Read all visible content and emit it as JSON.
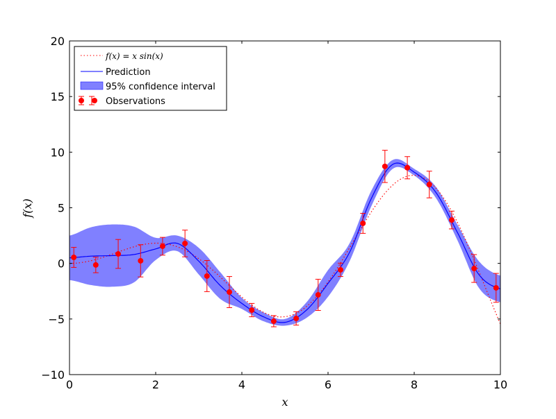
{
  "chart_data": {
    "type": "line",
    "title": "",
    "xlabel": "x",
    "ylabel": "f(x)",
    "xlim": [
      0,
      10
    ],
    "ylim": [
      -10,
      20
    ],
    "xticks": [
      "0",
      "2",
      "4",
      "6",
      "8",
      "10"
    ],
    "yticks": [
      "−10",
      "−5",
      "0",
      "5",
      "10",
      "15",
      "20"
    ],
    "grid": false,
    "legend_placement": "top-left",
    "legend": [
      "f(x) = x sin(x)",
      "Prediction",
      "95% confidence interval",
      "Observations"
    ],
    "colors": {
      "true_function": "#ff0000",
      "prediction": "#0000ff",
      "confidence": "#8080ff",
      "observations": "#ff0000"
    },
    "true_function": {
      "name": "f(x) = x sin(x)",
      "expression": "x*sin(x)",
      "style": "dotted"
    },
    "prediction": {
      "name": "Prediction",
      "x": [
        0,
        0.5,
        1,
        1.5,
        2,
        2.5,
        3,
        3.5,
        4,
        4.5,
        5,
        5.5,
        6,
        6.5,
        7,
        7.5,
        8,
        8.5,
        9,
        9.5,
        10
      ],
      "y": [
        0.5,
        0.65,
        0.7,
        0.8,
        1.3,
        1.8,
        0.2,
        -2.0,
        -3.6,
        -4.8,
        -5.3,
        -4.2,
        -1.8,
        1.0,
        5.8,
        8.9,
        8.2,
        6.4,
        2.8,
        -1.0,
        -2.3
      ],
      "ci_halfwidth": [
        2.0,
        2.6,
        2.8,
        2.5,
        1.0,
        0.7,
        1.2,
        1.2,
        0.5,
        0.4,
        0.3,
        0.7,
        1.2,
        0.8,
        0.7,
        0.4,
        0.3,
        0.5,
        0.7,
        1.2,
        1.2
      ]
    },
    "observations": {
      "name": "Observations",
      "x": [
        0.1,
        0.61,
        1.13,
        1.65,
        2.16,
        2.68,
        3.19,
        3.71,
        4.23,
        4.74,
        5.26,
        5.77,
        6.29,
        6.81,
        7.32,
        7.84,
        8.35,
        8.87,
        9.39,
        9.9
      ],
      "y": [
        0.54,
        -0.14,
        0.85,
        0.23,
        1.54,
        1.79,
        -1.14,
        -2.58,
        -4.2,
        -5.2,
        -4.95,
        -2.83,
        -0.58,
        3.6,
        8.72,
        8.6,
        7.09,
        3.9,
        -0.46,
        -2.2
      ],
      "err": [
        0.9,
        0.7,
        1.3,
        1.45,
        0.8,
        1.2,
        1.4,
        1.4,
        0.6,
        0.5,
        0.6,
        1.4,
        0.6,
        0.9,
        1.45,
        1.0,
        1.2,
        0.8,
        1.25,
        1.3
      ]
    }
  }
}
